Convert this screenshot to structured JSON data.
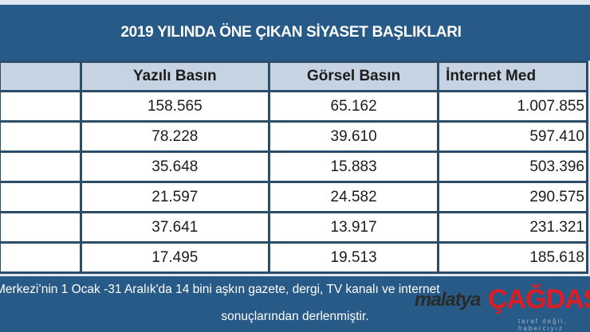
{
  "title": "2019 YILINDA ÖNE ÇIKAN SİYASET BAŞLIKLARI",
  "table": {
    "headers": [
      "",
      "Yazılı Basın",
      "Görsel Basın",
      "İnternet Med"
    ],
    "rows": [
      [
        "",
        "158.565",
        "65.162",
        "1.007.855"
      ],
      [
        "",
        "78.228",
        "39.610",
        "597.410"
      ],
      [
        "",
        "35.648",
        "15.883",
        "503.396"
      ],
      [
        "",
        "21.597",
        "24.582",
        "290.575"
      ],
      [
        "",
        "37.641",
        "13.917",
        "231.321"
      ],
      [
        "",
        "17.495",
        "19.513",
        "185.618"
      ]
    ]
  },
  "footer": {
    "line1": "Merkezi’nin 1 Ocak -31 Aralık'da 14 bini aşkın gazete, dergi, TV kanalı ve internet",
    "line2": "sonuçlarından derlenmiştir."
  },
  "watermark": {
    "brand1": "malatya",
    "brand2": "ÇAĞDAŞ",
    "slogan": "taraf değil, habercıyız"
  },
  "colors": {
    "banner": "#275a86",
    "header_row": "#c6d3e2",
    "logo_red": "#e01b24"
  }
}
